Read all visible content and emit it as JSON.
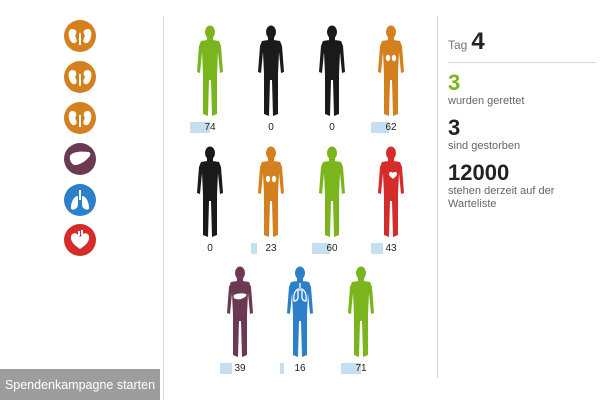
{
  "sidebar": {
    "organs": [
      {
        "type": "kidney",
        "icon": "kidney-icon",
        "color": "#d4801e"
      },
      {
        "type": "kidney",
        "icon": "kidney-icon",
        "color": "#d4801e"
      },
      {
        "type": "kidney",
        "icon": "kidney-icon",
        "color": "#d4801e"
      },
      {
        "type": "liver",
        "icon": "liver-icon",
        "color": "#6b3a52"
      },
      {
        "type": "lungs",
        "icon": "lungs-icon",
        "color": "#2e7fc9"
      },
      {
        "type": "heart",
        "icon": "heart-icon",
        "color": "#d42b2b"
      }
    ],
    "campaign_button": "Spendenkampagne starten"
  },
  "colors": {
    "saved": "#7ab51d",
    "deceased": "#1a1a1a",
    "kidney": "#d4801e",
    "liver": "#6b3a52",
    "lungs": "#2e7fc9",
    "heart": "#d42b2b",
    "countbar": "#c6dff0"
  },
  "patients": [
    {
      "status": "saved",
      "organ": "none",
      "count": "74",
      "level": 0.5
    },
    {
      "status": "deceased",
      "organ": "none",
      "count": "0",
      "level": 0
    },
    {
      "status": "deceased",
      "organ": "none",
      "count": "0",
      "level": 0
    },
    {
      "status": "waiting",
      "organ": "kidney",
      "count": "62",
      "level": 0.45
    },
    {
      "status": "deceased",
      "organ": "none",
      "count": "0",
      "level": 0
    },
    {
      "status": "waiting",
      "organ": "kidney",
      "count": "23",
      "level": 0.15
    },
    {
      "status": "saved",
      "organ": "none",
      "count": "60",
      "level": 0.45
    },
    {
      "status": "waiting",
      "organ": "heart",
      "count": "43",
      "level": 0.3
    },
    {
      "status": "waiting",
      "organ": "liver",
      "count": "39",
      "level": 0.3
    },
    {
      "status": "waiting",
      "organ": "lungs",
      "count": "16",
      "level": 0.1
    },
    {
      "status": "saved",
      "organ": "none",
      "count": "71",
      "level": 0.5
    }
  ],
  "stats": {
    "day_label": "Tag",
    "day_value": "4",
    "saved_count": "3",
    "saved_text": "wurden gerettet",
    "deceased_count": "3",
    "deceased_text": "sind gestorben",
    "waiting_count": "12000",
    "waiting_text": "stehen derzeit auf der Warteliste"
  }
}
